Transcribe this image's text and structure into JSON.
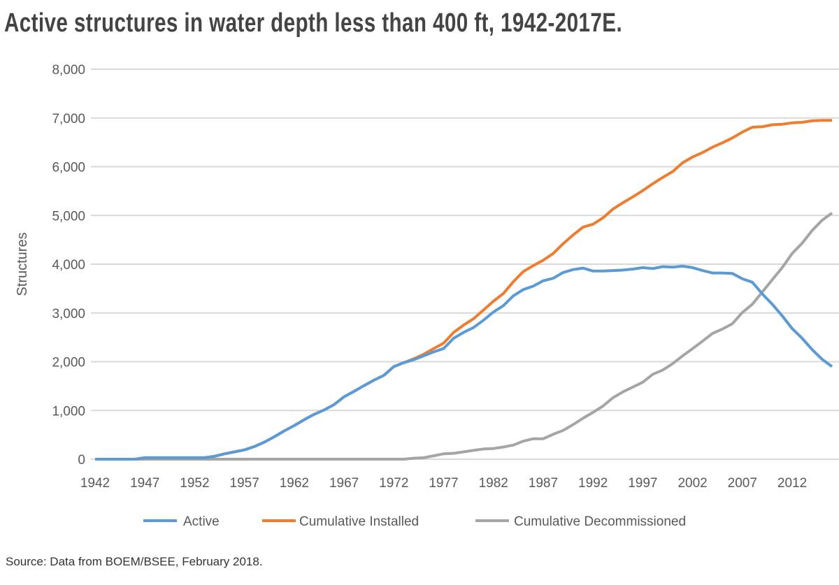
{
  "chart_data": {
    "type": "line",
    "title": "Active structures in water depth less than 400 ft, 1942-2017E.",
    "ylabel": "Structures",
    "xlabel": "",
    "ylim": [
      0,
      8000
    ],
    "yticks": [
      "0",
      "1,000",
      "2,000",
      "3,000",
      "4,000",
      "5,000",
      "6,000",
      "7,000",
      "8,000"
    ],
    "xtick_labels": [
      "1942",
      "1947",
      "1952",
      "1957",
      "1962",
      "1967",
      "1972",
      "1977",
      "1982",
      "1987",
      "1992",
      "1997",
      "2002",
      "2007",
      "2012"
    ],
    "x_start": 1942,
    "grid": true,
    "legend_position": "bottom",
    "series": [
      {
        "name": "Active",
        "color": "#5b9bd5",
        "values": [
          0,
          0,
          0,
          0,
          0,
          30,
          30,
          30,
          30,
          30,
          30,
          30,
          60,
          110,
          150,
          190,
          260,
          350,
          460,
          580,
          690,
          810,
          920,
          1010,
          1120,
          1280,
          1390,
          1510,
          1620,
          1720,
          1900,
          1980,
          2040,
          2120,
          2200,
          2270,
          2480,
          2600,
          2700,
          2850,
          3020,
          3150,
          3350,
          3480,
          3550,
          3660,
          3710,
          3830,
          3890,
          3920,
          3860,
          3860,
          3870,
          3880,
          3900,
          3930,
          3910,
          3950,
          3940,
          3960,
          3930,
          3870,
          3820,
          3820,
          3810,
          3700,
          3630,
          3390,
          3180,
          2940,
          2680,
          2480,
          2250,
          2050,
          1900
        ]
      },
      {
        "name": "Cumulative Installed",
        "color": "#ed7d31",
        "values": [
          0,
          0,
          0,
          0,
          0,
          30,
          30,
          30,
          30,
          30,
          30,
          30,
          60,
          110,
          150,
          190,
          260,
          350,
          460,
          580,
          690,
          810,
          920,
          1010,
          1120,
          1280,
          1390,
          1510,
          1620,
          1720,
          1900,
          1980,
          2060,
          2150,
          2270,
          2380,
          2600,
          2750,
          2880,
          3060,
          3240,
          3400,
          3640,
          3850,
          3970,
          4080,
          4220,
          4420,
          4600,
          4760,
          4820,
          4950,
          5130,
          5260,
          5380,
          5510,
          5650,
          5780,
          5900,
          6080,
          6200,
          6290,
          6400,
          6490,
          6590,
          6710,
          6810,
          6820,
          6860,
          6870,
          6900,
          6910,
          6940,
          6950,
          6950
        ]
      },
      {
        "name": "Cumulative Decommissioned",
        "color": "#a5a5a5",
        "values": [
          0,
          0,
          0,
          0,
          0,
          0,
          0,
          0,
          0,
          0,
          0,
          0,
          0,
          0,
          0,
          0,
          0,
          0,
          0,
          0,
          0,
          0,
          0,
          0,
          0,
          0,
          0,
          0,
          0,
          0,
          0,
          0,
          20,
          30,
          70,
          110,
          120,
          150,
          180,
          210,
          220,
          250,
          290,
          370,
          420,
          420,
          510,
          590,
          710,
          840,
          960,
          1090,
          1260,
          1380,
          1480,
          1580,
          1740,
          1830,
          1960,
          2120,
          2270,
          2420,
          2580,
          2670,
          2780,
          3010,
          3180,
          3430,
          3680,
          3930,
          4220,
          4430,
          4690,
          4900,
          5050
        ]
      }
    ]
  },
  "source": "Source: Data from BOEM/BSEE, February 2018."
}
